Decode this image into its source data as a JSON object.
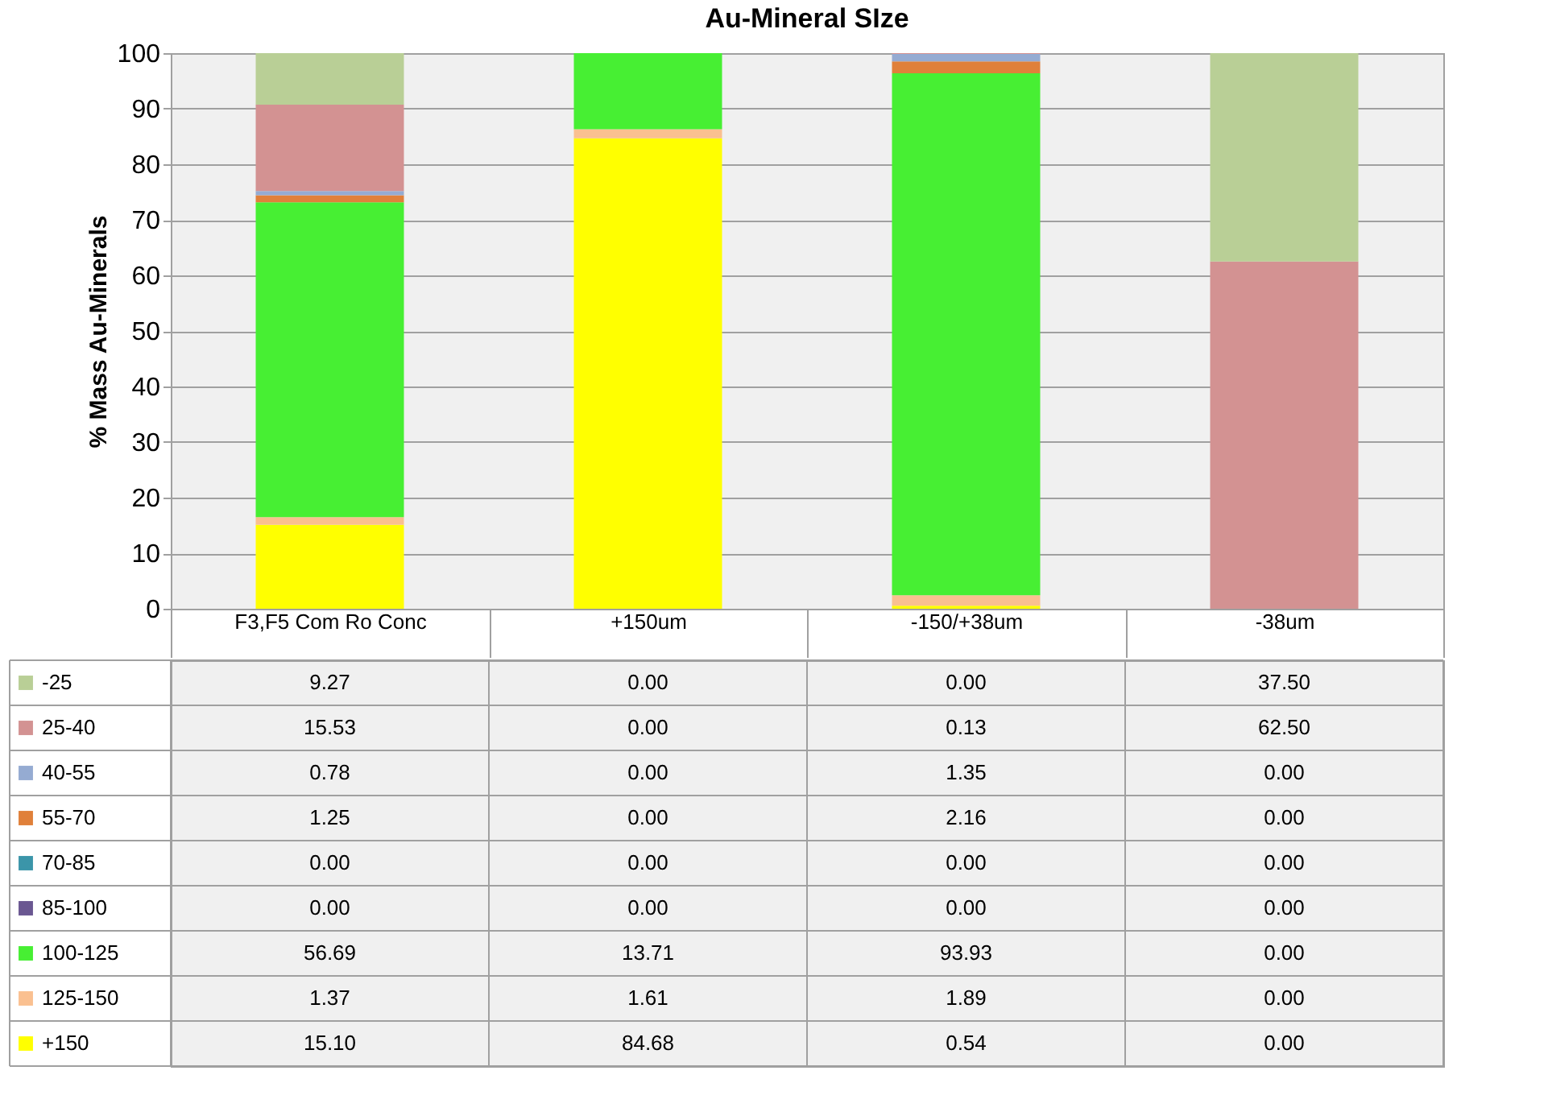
{
  "chart_data": {
    "type": "bar",
    "stacked": true,
    "title": "Au-Mineral SIze",
    "ylabel": "% Mass Au-Minerals",
    "categories": [
      "F3,F5 Com Ro Conc",
      "+150um",
      "-150/+38um",
      "-38um"
    ],
    "ylim": [
      0,
      100
    ],
    "yticks": [
      0,
      10,
      20,
      30,
      40,
      50,
      60,
      70,
      80,
      90,
      100
    ],
    "grid": "y",
    "legend": "bottom left",
    "series": [
      {
        "name": "+150",
        "color": "#ffff00",
        "values": [
          15.1,
          84.68,
          0.54,
          0.0
        ],
        "value_labels": [
          "15.10",
          "84.68",
          "0.54",
          "0.00"
        ]
      },
      {
        "name": "125-150",
        "color": "#fac090",
        "values": [
          1.37,
          1.61,
          1.89,
          0.0
        ],
        "value_labels": [
          "1.37",
          "1.61",
          "1.89",
          "0.00"
        ]
      },
      {
        "name": "100-125",
        "color": "#47ef33",
        "values": [
          56.69,
          13.71,
          93.93,
          0.0
        ],
        "value_labels": [
          "56.69",
          "13.71",
          "93.93",
          "0.00"
        ]
      },
      {
        "name": "85-100",
        "color": "#6a5791",
        "values": [
          0.0,
          0.0,
          0.0,
          0.0
        ],
        "value_labels": [
          "0.00",
          "0.00",
          "0.00",
          "0.00"
        ]
      },
      {
        "name": "70-85",
        "color": "#3b95a9",
        "values": [
          0.0,
          0.0,
          0.0,
          0.0
        ],
        "value_labels": [
          "0.00",
          "0.00",
          "0.00",
          "0.00"
        ]
      },
      {
        "name": "55-70",
        "color": "#e0803a",
        "values": [
          1.25,
          0.0,
          2.16,
          0.0
        ],
        "value_labels": [
          "1.25",
          "0.00",
          "2.16",
          "0.00"
        ]
      },
      {
        "name": "40-55",
        "color": "#95abd2",
        "values": [
          0.78,
          0.0,
          1.35,
          0.0
        ],
        "value_labels": [
          "0.78",
          "0.00",
          "1.35",
          "0.00"
        ]
      },
      {
        "name": "25-40",
        "color": "#d39292",
        "values": [
          15.53,
          0.0,
          0.13,
          62.5
        ],
        "value_labels": [
          "15.53",
          "0.00",
          "0.13",
          "62.50"
        ]
      },
      {
        "name": "-25",
        "color": "#b9cf96",
        "values": [
          9.27,
          0.0,
          0.0,
          37.5
        ],
        "value_labels": [
          "9.27",
          "0.00",
          "0.00",
          "37.50"
        ]
      }
    ]
  }
}
